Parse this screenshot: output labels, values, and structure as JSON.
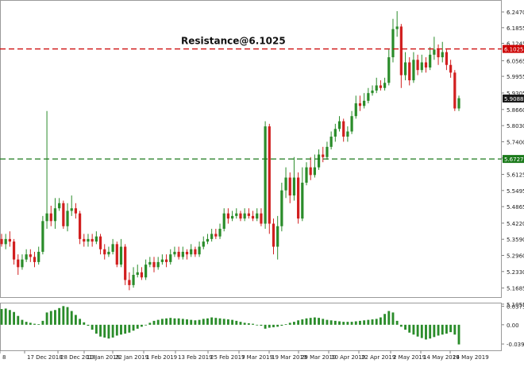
{
  "chart_data": [
    {
      "type": "candlestick",
      "annotation": "Resistance@6.1025",
      "ylim": [
        5.13,
        6.275
      ],
      "y_ticks": [
        "6.2470",
        "6.1855",
        "6.1245",
        "6.0565",
        "5.9955",
        "5.9305",
        "5.8660",
        "5.8030",
        "5.7400",
        "5.6765",
        "5.6125",
        "5.5495",
        "5.4865",
        "5.4220",
        "5.3590",
        "5.2960",
        "5.2330",
        "5.1685",
        "5.1055"
      ],
      "x_ticks": [
        "8",
        "17 Dec 2018",
        "28 Dec 2018",
        "10 Jan 2019",
        "22 Jan 2019",
        "1 Feb 2019",
        "13 Feb 2019",
        "25 Feb 2019",
        "7 Mar 2019",
        "19 Mar 2019",
        "29 Mar 2019",
        "10 Apr 2019",
        "22 Apr 2019",
        "2 May 2019",
        "14 May 2019",
        "24 May 2019"
      ],
      "levels": [
        {
          "name": "resistance",
          "value": 6.1025,
          "label": "6.1025",
          "color": "#cc0000"
        },
        {
          "name": "support",
          "value": 5.6727,
          "label": "5.6727",
          "color": "#1b7a1b"
        }
      ],
      "current_price": {
        "value": 5.9088,
        "label": "5.9088"
      },
      "colors": {
        "up": "#2a8c2a",
        "down": "#d11f1f",
        "grid": "#e8e8e8",
        "axis": "#808080"
      },
      "candles": [
        [
          5.36,
          5.34,
          5.38,
          5.33
        ],
        [
          5.34,
          5.36,
          5.38,
          5.32
        ],
        [
          5.36,
          5.35,
          5.39,
          5.33
        ],
        [
          5.35,
          5.28,
          5.36,
          5.26
        ],
        [
          5.28,
          5.25,
          5.3,
          5.22
        ],
        [
          5.25,
          5.28,
          5.3,
          5.24
        ],
        [
          5.28,
          5.3,
          5.32,
          5.27
        ],
        [
          5.3,
          5.29,
          5.32,
          5.27
        ],
        [
          5.29,
          5.27,
          5.31,
          5.25
        ],
        [
          5.27,
          5.31,
          5.33,
          5.26
        ],
        [
          5.31,
          5.43,
          5.45,
          5.3
        ],
        [
          5.43,
          5.46,
          5.86,
          5.4
        ],
        [
          5.46,
          5.43,
          5.49,
          5.41
        ],
        [
          5.43,
          5.48,
          5.52,
          5.4
        ],
        [
          5.48,
          5.5,
          5.52,
          5.47
        ],
        [
          5.5,
          5.41,
          5.51,
          5.4
        ],
        [
          5.41,
          5.47,
          5.5,
          5.39
        ],
        [
          5.47,
          5.48,
          5.53,
          5.45
        ],
        [
          5.48,
          5.46,
          5.5,
          5.44
        ],
        [
          5.46,
          5.36,
          5.47,
          5.34
        ],
        [
          5.36,
          5.35,
          5.38,
          5.33
        ],
        [
          5.35,
          5.36,
          5.38,
          5.33
        ],
        [
          5.36,
          5.35,
          5.38,
          5.33
        ],
        [
          5.35,
          5.37,
          5.39,
          5.34
        ],
        [
          5.37,
          5.32,
          5.38,
          5.3
        ],
        [
          5.32,
          5.3,
          5.34,
          5.28
        ],
        [
          5.3,
          5.31,
          5.33,
          5.29
        ],
        [
          5.31,
          5.34,
          5.36,
          5.3
        ],
        [
          5.34,
          5.26,
          5.35,
          5.25
        ],
        [
          5.26,
          5.33,
          5.36,
          5.25
        ],
        [
          5.33,
          5.2,
          5.34,
          5.18
        ],
        [
          5.2,
          5.18,
          5.23,
          5.16
        ],
        [
          5.18,
          5.22,
          5.25,
          5.17
        ],
        [
          5.22,
          5.23,
          5.26,
          5.21
        ],
        [
          5.23,
          5.21,
          5.25,
          5.2
        ],
        [
          5.21,
          5.26,
          5.28,
          5.2
        ],
        [
          5.26,
          5.27,
          5.29,
          5.25
        ],
        [
          5.27,
          5.25,
          5.29,
          5.23
        ],
        [
          5.25,
          5.27,
          5.29,
          5.24
        ],
        [
          5.27,
          5.28,
          5.3,
          5.26
        ],
        [
          5.28,
          5.27,
          5.3,
          5.25
        ],
        [
          5.27,
          5.3,
          5.32,
          5.26
        ],
        [
          5.3,
          5.31,
          5.33,
          5.29
        ],
        [
          5.31,
          5.29,
          5.33,
          5.28
        ],
        [
          5.29,
          5.31,
          5.33,
          5.28
        ],
        [
          5.31,
          5.3,
          5.32,
          5.28
        ],
        [
          5.3,
          5.32,
          5.34,
          5.29
        ],
        [
          5.32,
          5.3,
          5.33,
          5.29
        ],
        [
          5.3,
          5.33,
          5.35,
          5.29
        ],
        [
          5.33,
          5.35,
          5.37,
          5.32
        ],
        [
          5.35,
          5.36,
          5.38,
          5.34
        ],
        [
          5.36,
          5.38,
          5.4,
          5.35
        ],
        [
          5.38,
          5.37,
          5.4,
          5.36
        ],
        [
          5.37,
          5.4,
          5.42,
          5.36
        ],
        [
          5.4,
          5.46,
          5.48,
          5.39
        ],
        [
          5.46,
          5.44,
          5.48,
          5.42
        ],
        [
          5.44,
          5.45,
          5.47,
          5.43
        ],
        [
          5.45,
          5.46,
          5.48,
          5.44
        ],
        [
          5.46,
          5.44,
          5.47,
          5.43
        ],
        [
          5.44,
          5.46,
          5.48,
          5.43
        ],
        [
          5.46,
          5.45,
          5.48,
          5.44
        ],
        [
          5.45,
          5.44,
          5.47,
          5.43
        ],
        [
          5.44,
          5.46,
          5.48,
          5.43
        ],
        [
          5.46,
          5.42,
          5.48,
          5.41
        ],
        [
          5.42,
          5.8,
          5.82,
          5.4
        ],
        [
          5.8,
          5.42,
          5.81,
          5.38
        ],
        [
          5.42,
          5.33,
          5.44,
          5.3
        ],
        [
          5.33,
          5.41,
          5.45,
          5.28
        ],
        [
          5.41,
          5.55,
          5.58,
          5.39
        ],
        [
          5.55,
          5.6,
          5.64,
          5.52
        ],
        [
          5.6,
          5.53,
          5.62,
          5.5
        ],
        [
          5.53,
          5.6,
          5.68,
          5.51
        ],
        [
          5.6,
          5.44,
          5.62,
          5.42
        ],
        [
          5.44,
          5.58,
          5.64,
          5.43
        ],
        [
          5.58,
          5.64,
          5.66,
          5.57
        ],
        [
          5.64,
          5.61,
          5.68,
          5.59
        ],
        [
          5.61,
          5.64,
          5.69,
          5.6
        ],
        [
          5.64,
          5.69,
          5.71,
          5.63
        ],
        [
          5.69,
          5.68,
          5.72,
          5.66
        ],
        [
          5.68,
          5.72,
          5.74,
          5.67
        ],
        [
          5.72,
          5.76,
          5.78,
          5.71
        ],
        [
          5.76,
          5.79,
          5.81,
          5.74
        ],
        [
          5.79,
          5.82,
          5.84,
          5.78
        ],
        [
          5.82,
          5.76,
          5.83,
          5.74
        ],
        [
          5.76,
          5.78,
          5.8,
          5.74
        ],
        [
          5.78,
          5.84,
          5.86,
          5.77
        ],
        [
          5.84,
          5.89,
          5.92,
          5.83
        ],
        [
          5.89,
          5.88,
          5.92,
          5.86
        ],
        [
          5.88,
          5.9,
          5.93,
          5.87
        ],
        [
          5.9,
          5.93,
          5.95,
          5.89
        ],
        [
          5.93,
          5.94,
          5.96,
          5.92
        ],
        [
          5.94,
          5.96,
          5.99,
          5.93
        ],
        [
          5.96,
          5.95,
          5.98,
          5.94
        ],
        [
          5.95,
          5.97,
          5.99,
          5.94
        ],
        [
          5.97,
          6.07,
          6.1,
          5.96
        ],
        [
          6.07,
          6.18,
          6.22,
          6.05
        ],
        [
          6.18,
          6.19,
          6.25,
          6.15
        ],
        [
          6.19,
          6.0,
          6.2,
          5.95
        ],
        [
          6.0,
          6.05,
          6.09,
          5.98
        ],
        [
          6.05,
          5.98,
          6.07,
          5.96
        ],
        [
          5.98,
          6.06,
          6.09,
          5.97
        ],
        [
          6.06,
          6.02,
          6.08,
          6.0
        ],
        [
          6.02,
          6.05,
          6.08,
          6.01
        ],
        [
          6.05,
          6.03,
          6.07,
          6.01
        ],
        [
          6.03,
          6.08,
          6.11,
          6.02
        ],
        [
          6.08,
          6.1,
          6.15,
          6.06
        ],
        [
          6.1,
          6.07,
          6.12,
          6.04
        ],
        [
          6.07,
          6.09,
          6.13,
          6.05
        ],
        [
          6.09,
          6.04,
          6.1,
          6.02
        ],
        [
          6.04,
          6.01,
          6.06,
          5.99
        ],
        [
          6.01,
          5.87,
          6.02,
          5.86
        ],
        [
          5.87,
          5.91,
          5.92,
          5.86
        ]
      ]
    },
    {
      "type": "bar",
      "panel": "oscillator",
      "ylim": [
        -0.052,
        0.045
      ],
      "y_ticks": [
        "0.03757",
        "0.00",
        "-0.03915"
      ],
      "colors": {
        "up": "#2a8c2a",
        "down": "#1f7a1f"
      },
      "values": [
        0.032,
        0.033,
        0.03,
        0.026,
        0.018,
        0.01,
        0.006,
        0.004,
        0.002,
        0.001,
        0.008,
        0.025,
        0.028,
        0.03,
        0.034,
        0.038,
        0.036,
        0.028,
        0.02,
        0.012,
        0.005,
        -0.002,
        -0.01,
        -0.018,
        -0.024,
        -0.026,
        -0.028,
        -0.026,
        -0.022,
        -0.02,
        -0.018,
        -0.016,
        -0.012,
        -0.008,
        -0.004,
        0.0,
        0.004,
        0.008,
        0.01,
        0.012,
        0.013,
        0.014,
        0.013,
        0.013,
        0.012,
        0.011,
        0.01,
        0.009,
        0.01,
        0.012,
        0.013,
        0.015,
        0.014,
        0.013,
        0.012,
        0.011,
        0.01,
        0.008,
        0.006,
        0.004,
        0.003,
        0.002,
        0.0,
        -0.002,
        -0.008,
        -0.006,
        -0.005,
        -0.004,
        -0.002,
        0.001,
        0.004,
        0.006,
        0.009,
        0.011,
        0.013,
        0.014,
        0.015,
        0.014,
        0.012,
        0.01,
        0.009,
        0.008,
        0.007,
        0.006,
        0.006,
        0.006,
        0.007,
        0.008,
        0.009,
        0.01,
        0.011,
        0.012,
        0.015,
        0.022,
        0.028,
        0.025,
        0.008,
        -0.004,
        -0.01,
        -0.016,
        -0.02,
        -0.024,
        -0.027,
        -0.03,
        -0.028,
        -0.025,
        -0.022,
        -0.02,
        -0.018,
        -0.015,
        -0.02,
        -0.04
      ]
    }
  ]
}
